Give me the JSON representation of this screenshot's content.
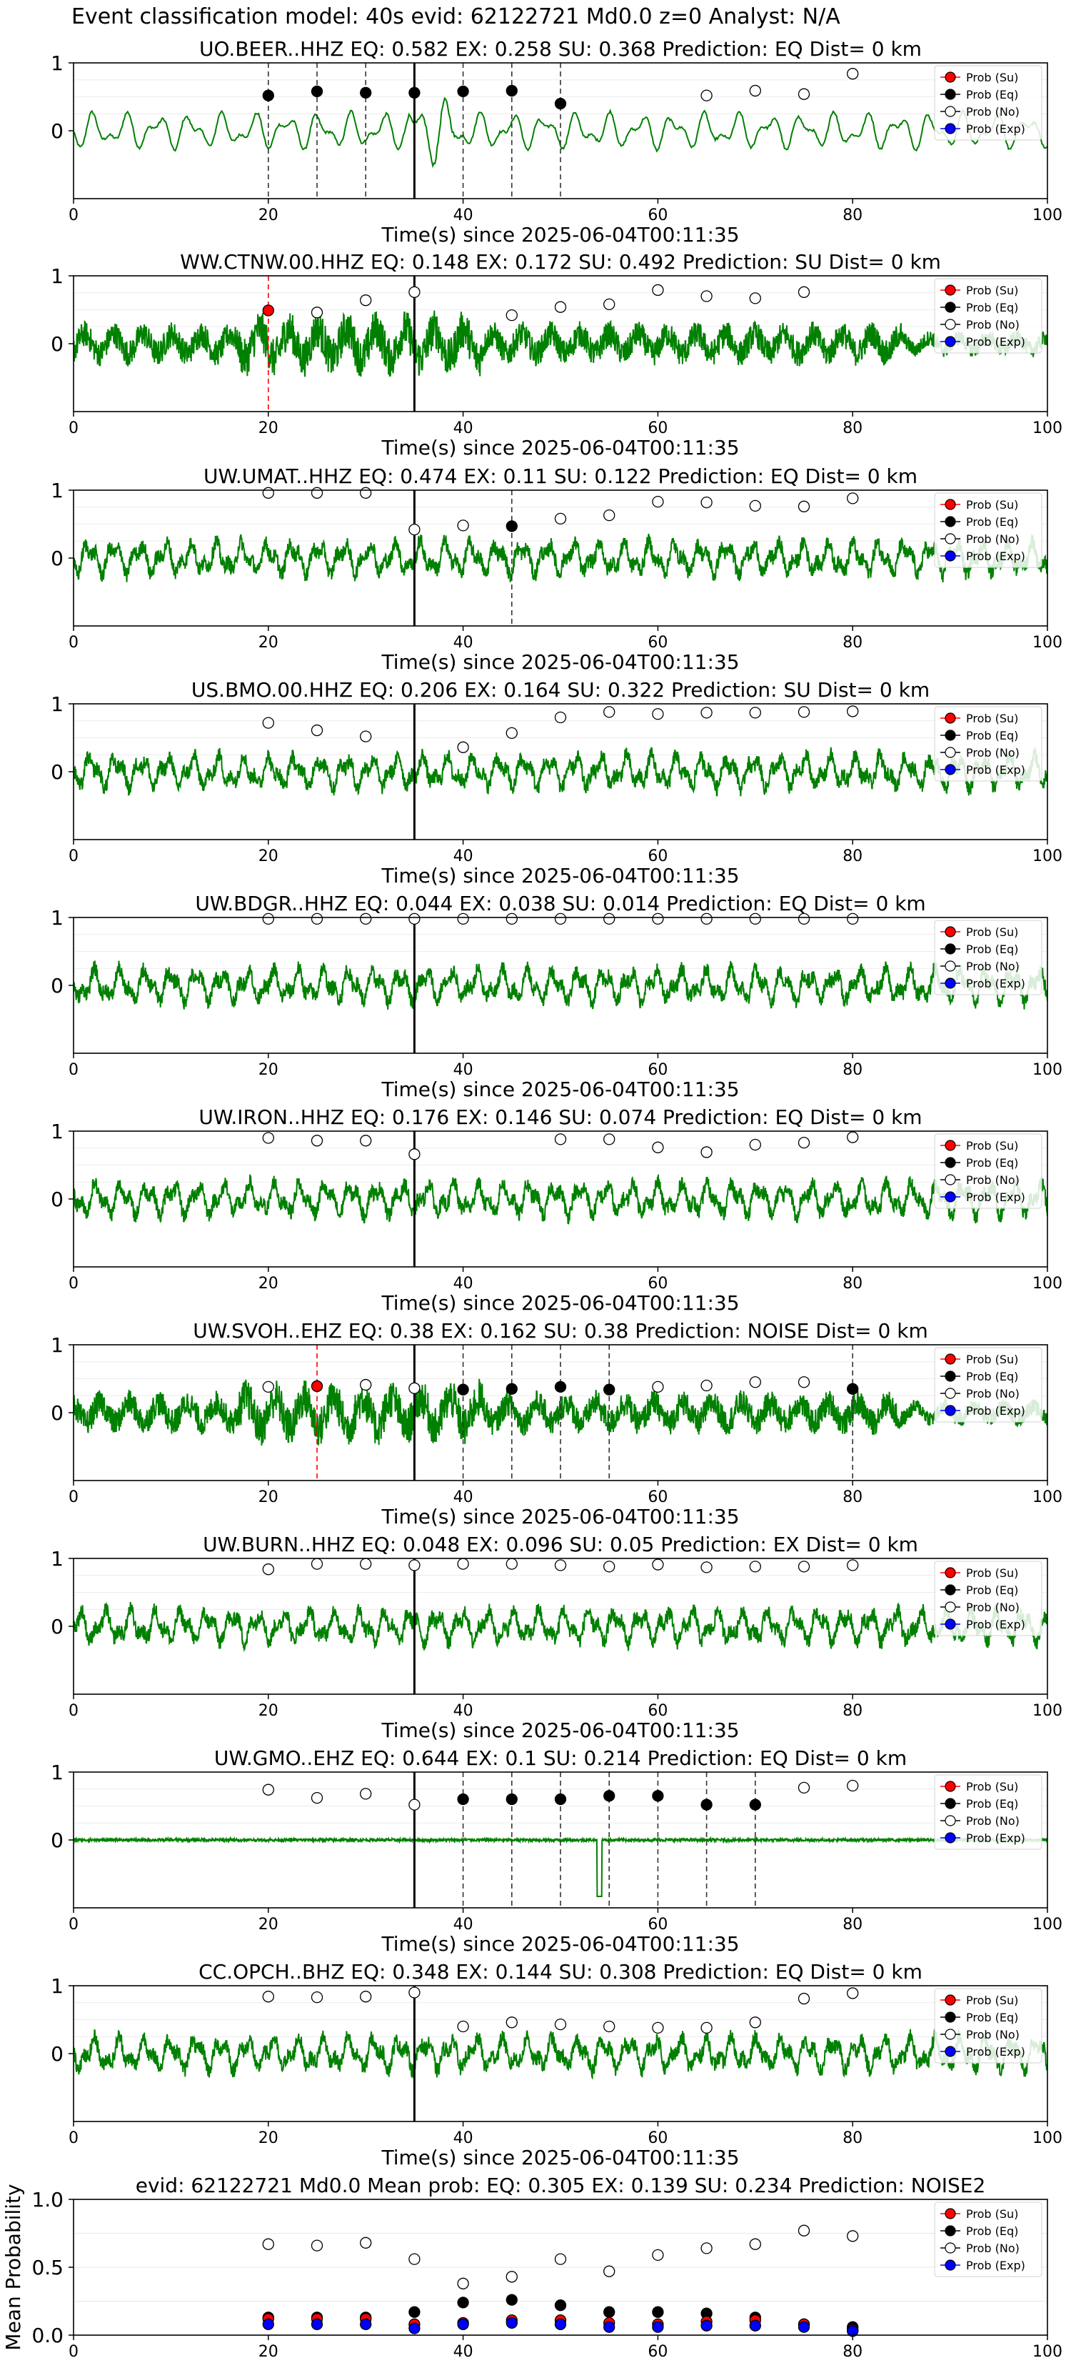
{
  "figure_title": "Event classification model: 40s evid: 62122721 Md0.0 z=0 Analyst: N/A",
  "legend_labels": [
    "Prob (Su)",
    "Prob (Eq)",
    "Prob (No)",
    "Prob (Exp)"
  ],
  "colors": {
    "trace": "#008000",
    "su": "#ff0000",
    "eq": "#000000",
    "no": "#ffffff",
    "exp": "#0000ff"
  },
  "chart_data": [
    {
      "type": "line",
      "title": "UO.BEER..HHZ   EQ: 0.582  EX: 0.258  SU: 0.368   Prediction: EQ    Dist= 0 km",
      "xlabel": "Time(s) since 2025-06-04T00:11:35",
      "xlim": [
        0,
        100
      ],
      "ylim": [
        -1,
        1
      ],
      "y_ticks": [
        "1",
        "0"
      ],
      "x_ticks": [
        "0",
        "20",
        "40",
        "60",
        "80",
        "100"
      ],
      "trace_style": "smooth",
      "origin_time": 35,
      "markers": [
        {
          "x": 20,
          "y": 0.52,
          "c": "eq"
        },
        {
          "x": 25,
          "y": 0.58,
          "c": "eq"
        },
        {
          "x": 30,
          "y": 0.56,
          "c": "eq"
        },
        {
          "x": 35,
          "y": 0.56,
          "c": "eq"
        },
        {
          "x": 40,
          "y": 0.58,
          "c": "eq"
        },
        {
          "x": 45,
          "y": 0.59,
          "c": "eq"
        },
        {
          "x": 50,
          "y": 0.4,
          "c": "eq"
        },
        {
          "x": 65,
          "y": 0.52,
          "c": "no"
        },
        {
          "x": 70,
          "y": 0.59,
          "c": "no"
        },
        {
          "x": 75,
          "y": 0.54,
          "c": "no"
        },
        {
          "x": 80,
          "y": 0.84,
          "c": "no"
        }
      ],
      "picks": [
        {
          "x": 20,
          "c": "eq"
        },
        {
          "x": 25,
          "c": "eq"
        },
        {
          "x": 30,
          "c": "eq"
        },
        {
          "x": 40,
          "c": "eq"
        },
        {
          "x": 45,
          "c": "eq"
        },
        {
          "x": 50,
          "c": "eq"
        }
      ]
    },
    {
      "type": "line",
      "title": "WW.CTNW.00.HHZ   EQ: 0.148  EX: 0.172  SU: 0.492   Prediction: SU    Dist= 0 km",
      "xlabel": "Time(s) since 2025-06-04T00:11:35",
      "xlim": [
        0,
        100
      ],
      "ylim": [
        -1,
        1
      ],
      "y_ticks": [
        "1",
        "0"
      ],
      "x_ticks": [
        "0",
        "20",
        "40",
        "60",
        "80",
        "100"
      ],
      "trace_style": "noisy",
      "origin_time": 35,
      "markers": [
        {
          "x": 20,
          "y": 0.49,
          "c": "su"
        },
        {
          "x": 25,
          "y": 0.46,
          "c": "no"
        },
        {
          "x": 30,
          "y": 0.64,
          "c": "no"
        },
        {
          "x": 35,
          "y": 0.76,
          "c": "no"
        },
        {
          "x": 45,
          "y": 0.42,
          "c": "no"
        },
        {
          "x": 50,
          "y": 0.54,
          "c": "no"
        },
        {
          "x": 55,
          "y": 0.58,
          "c": "no"
        },
        {
          "x": 60,
          "y": 0.79,
          "c": "no"
        },
        {
          "x": 65,
          "y": 0.7,
          "c": "no"
        },
        {
          "x": 70,
          "y": 0.67,
          "c": "no"
        },
        {
          "x": 75,
          "y": 0.76,
          "c": "no"
        }
      ],
      "picks": [
        {
          "x": 20,
          "c": "su"
        }
      ]
    },
    {
      "type": "line",
      "title": "UW.UMAT..HHZ   EQ: 0.474  EX: 0.11  SU: 0.122   Prediction: EQ    Dist= 0 km",
      "xlabel": "Time(s) since 2025-06-04T00:11:35",
      "xlim": [
        0,
        100
      ],
      "ylim": [
        -1,
        1
      ],
      "y_ticks": [
        "1",
        "0"
      ],
      "x_ticks": [
        "0",
        "20",
        "40",
        "60",
        "80",
        "100"
      ],
      "trace_style": "medium",
      "origin_time": 35,
      "markers": [
        {
          "x": 20,
          "y": 0.96,
          "c": "no"
        },
        {
          "x": 25,
          "y": 0.96,
          "c": "no"
        },
        {
          "x": 30,
          "y": 0.96,
          "c": "no"
        },
        {
          "x": 35,
          "y": 0.42,
          "c": "no"
        },
        {
          "x": 40,
          "y": 0.48,
          "c": "no"
        },
        {
          "x": 45,
          "y": 0.47,
          "c": "eq"
        },
        {
          "x": 50,
          "y": 0.58,
          "c": "no"
        },
        {
          "x": 55,
          "y": 0.63,
          "c": "no"
        },
        {
          "x": 60,
          "y": 0.83,
          "c": "no"
        },
        {
          "x": 65,
          "y": 0.82,
          "c": "no"
        },
        {
          "x": 70,
          "y": 0.77,
          "c": "no"
        },
        {
          "x": 75,
          "y": 0.76,
          "c": "no"
        },
        {
          "x": 80,
          "y": 0.88,
          "c": "no"
        }
      ],
      "picks": [
        {
          "x": 45,
          "c": "eq"
        }
      ]
    },
    {
      "type": "line",
      "title": "US.BMO.00.HHZ   EQ: 0.206  EX: 0.164  SU: 0.322   Prediction: SU    Dist= 0 km",
      "xlabel": "Time(s) since 2025-06-04T00:11:35",
      "xlim": [
        0,
        100
      ],
      "ylim": [
        -1,
        1
      ],
      "y_ticks": [
        "1",
        "0"
      ],
      "x_ticks": [
        "0",
        "20",
        "40",
        "60",
        "80",
        "100"
      ],
      "trace_style": "medium",
      "origin_time": 35,
      "markers": [
        {
          "x": 20,
          "y": 0.72,
          "c": "no"
        },
        {
          "x": 25,
          "y": 0.61,
          "c": "no"
        },
        {
          "x": 30,
          "y": 0.52,
          "c": "no"
        },
        {
          "x": 40,
          "y": 0.36,
          "c": "no"
        },
        {
          "x": 45,
          "y": 0.57,
          "c": "no"
        },
        {
          "x": 50,
          "y": 0.8,
          "c": "no"
        },
        {
          "x": 55,
          "y": 0.88,
          "c": "no"
        },
        {
          "x": 60,
          "y": 0.85,
          "c": "no"
        },
        {
          "x": 65,
          "y": 0.87,
          "c": "no"
        },
        {
          "x": 70,
          "y": 0.87,
          "c": "no"
        },
        {
          "x": 75,
          "y": 0.88,
          "c": "no"
        },
        {
          "x": 80,
          "y": 0.89,
          "c": "no"
        }
      ],
      "picks": []
    },
    {
      "type": "line",
      "title": "UW.BDGR..HHZ   EQ: 0.044  EX: 0.038  SU: 0.014   Prediction: EQ    Dist= 0 km",
      "xlabel": "Time(s) since 2025-06-04T00:11:35",
      "xlim": [
        0,
        100
      ],
      "ylim": [
        -1,
        1
      ],
      "y_ticks": [
        "1",
        "0"
      ],
      "x_ticks": [
        "0",
        "20",
        "40",
        "60",
        "80",
        "100"
      ],
      "trace_style": "medium",
      "origin_time": 35,
      "markers": [
        {
          "x": 20,
          "y": 0.98,
          "c": "no"
        },
        {
          "x": 25,
          "y": 0.98,
          "c": "no"
        },
        {
          "x": 30,
          "y": 0.98,
          "c": "no"
        },
        {
          "x": 35,
          "y": 0.98,
          "c": "no"
        },
        {
          "x": 40,
          "y": 0.98,
          "c": "no"
        },
        {
          "x": 45,
          "y": 0.98,
          "c": "no"
        },
        {
          "x": 50,
          "y": 0.98,
          "c": "no"
        },
        {
          "x": 55,
          "y": 0.98,
          "c": "no"
        },
        {
          "x": 60,
          "y": 0.98,
          "c": "no"
        },
        {
          "x": 65,
          "y": 0.98,
          "c": "no"
        },
        {
          "x": 70,
          "y": 0.98,
          "c": "no"
        },
        {
          "x": 75,
          "y": 0.98,
          "c": "no"
        },
        {
          "x": 80,
          "y": 0.98,
          "c": "no"
        }
      ],
      "picks": []
    },
    {
      "type": "line",
      "title": "UW.IRON..HHZ   EQ: 0.176  EX: 0.146  SU: 0.074   Prediction: EQ    Dist= 0 km",
      "xlabel": "Time(s) since 2025-06-04T00:11:35",
      "xlim": [
        0,
        100
      ],
      "ylim": [
        -1,
        1
      ],
      "y_ticks": [
        "1",
        "0"
      ],
      "x_ticks": [
        "0",
        "20",
        "40",
        "60",
        "80",
        "100"
      ],
      "trace_style": "medium",
      "origin_time": 35,
      "markers": [
        {
          "x": 20,
          "y": 0.9,
          "c": "no"
        },
        {
          "x": 25,
          "y": 0.86,
          "c": "no"
        },
        {
          "x": 30,
          "y": 0.86,
          "c": "no"
        },
        {
          "x": 35,
          "y": 0.66,
          "c": "no"
        },
        {
          "x": 50,
          "y": 0.88,
          "c": "no"
        },
        {
          "x": 55,
          "y": 0.88,
          "c": "no"
        },
        {
          "x": 60,
          "y": 0.76,
          "c": "no"
        },
        {
          "x": 65,
          "y": 0.69,
          "c": "no"
        },
        {
          "x": 70,
          "y": 0.8,
          "c": "no"
        },
        {
          "x": 75,
          "y": 0.83,
          "c": "no"
        },
        {
          "x": 80,
          "y": 0.91,
          "c": "no"
        }
      ],
      "picks": []
    },
    {
      "type": "line",
      "title": "UW.SVOH..EHZ   EQ: 0.38  EX: 0.162  SU: 0.38   Prediction: NOISE    Dist= 0 km",
      "xlabel": "Time(s) since 2025-06-04T00:11:35",
      "xlim": [
        0,
        100
      ],
      "ylim": [
        -1,
        1
      ],
      "y_ticks": [
        "1",
        "0"
      ],
      "x_ticks": [
        "0",
        "20",
        "40",
        "60",
        "80",
        "100"
      ],
      "trace_style": "noisy",
      "origin_time": 35,
      "markers": [
        {
          "x": 20,
          "y": 0.38,
          "c": "no"
        },
        {
          "x": 25,
          "y": 0.39,
          "c": "su"
        },
        {
          "x": 30,
          "y": 0.41,
          "c": "no"
        },
        {
          "x": 35,
          "y": 0.36,
          "c": "no"
        },
        {
          "x": 40,
          "y": 0.34,
          "c": "eq"
        },
        {
          "x": 45,
          "y": 0.35,
          "c": "eq"
        },
        {
          "x": 50,
          "y": 0.38,
          "c": "eq"
        },
        {
          "x": 55,
          "y": 0.34,
          "c": "eq"
        },
        {
          "x": 60,
          "y": 0.38,
          "c": "no"
        },
        {
          "x": 65,
          "y": 0.4,
          "c": "no"
        },
        {
          "x": 70,
          "y": 0.45,
          "c": "no"
        },
        {
          "x": 75,
          "y": 0.45,
          "c": "no"
        },
        {
          "x": 80,
          "y": 0.35,
          "c": "eq"
        }
      ],
      "picks": [
        {
          "x": 25,
          "c": "su"
        },
        {
          "x": 40,
          "c": "eq"
        },
        {
          "x": 45,
          "c": "eq"
        },
        {
          "x": 50,
          "c": "eq"
        },
        {
          "x": 55,
          "c": "eq"
        },
        {
          "x": 80,
          "c": "eq"
        }
      ]
    },
    {
      "type": "line",
      "title": "UW.BURN..HHZ   EQ: 0.048  EX: 0.096  SU: 0.05   Prediction: EX    Dist= 0 km",
      "xlabel": "Time(s) since 2025-06-04T00:11:35",
      "xlim": [
        0,
        100
      ],
      "ylim": [
        -1,
        1
      ],
      "y_ticks": [
        "1",
        "0"
      ],
      "x_ticks": [
        "0",
        "20",
        "40",
        "60",
        "80",
        "100"
      ],
      "trace_style": "medium",
      "origin_time": 35,
      "markers": [
        {
          "x": 20,
          "y": 0.84,
          "c": "no"
        },
        {
          "x": 25,
          "y": 0.92,
          "c": "no"
        },
        {
          "x": 30,
          "y": 0.92,
          "c": "no"
        },
        {
          "x": 35,
          "y": 0.9,
          "c": "no"
        },
        {
          "x": 40,
          "y": 0.92,
          "c": "no"
        },
        {
          "x": 45,
          "y": 0.92,
          "c": "no"
        },
        {
          "x": 50,
          "y": 0.9,
          "c": "no"
        },
        {
          "x": 55,
          "y": 0.88,
          "c": "no"
        },
        {
          "x": 60,
          "y": 0.91,
          "c": "no"
        },
        {
          "x": 65,
          "y": 0.87,
          "c": "no"
        },
        {
          "x": 70,
          "y": 0.88,
          "c": "no"
        },
        {
          "x": 75,
          "y": 0.88,
          "c": "no"
        },
        {
          "x": 80,
          "y": 0.9,
          "c": "no"
        }
      ],
      "picks": []
    },
    {
      "type": "line",
      "title": "UW.GMO..EHZ   EQ: 0.644  EX: 0.1  SU: 0.214   Prediction: EQ    Dist= 0 km",
      "xlabel": "Time(s) since 2025-06-04T00:11:35",
      "xlim": [
        0,
        100
      ],
      "ylim": [
        -1,
        1
      ],
      "y_ticks": [
        "1",
        "0"
      ],
      "x_ticks": [
        "0",
        "20",
        "40",
        "60",
        "80",
        "100"
      ],
      "trace_style": "flat",
      "origin_time": 35,
      "markers": [
        {
          "x": 20,
          "y": 0.74,
          "c": "no"
        },
        {
          "x": 25,
          "y": 0.62,
          "c": "no"
        },
        {
          "x": 30,
          "y": 0.68,
          "c": "no"
        },
        {
          "x": 35,
          "y": 0.52,
          "c": "no"
        },
        {
          "x": 40,
          "y": 0.6,
          "c": "eq"
        },
        {
          "x": 45,
          "y": 0.6,
          "c": "eq"
        },
        {
          "x": 50,
          "y": 0.6,
          "c": "eq"
        },
        {
          "x": 55,
          "y": 0.65,
          "c": "eq"
        },
        {
          "x": 60,
          "y": 0.65,
          "c": "eq"
        },
        {
          "x": 65,
          "y": 0.52,
          "c": "eq"
        },
        {
          "x": 70,
          "y": 0.52,
          "c": "eq"
        },
        {
          "x": 75,
          "y": 0.77,
          "c": "no"
        },
        {
          "x": 80,
          "y": 0.8,
          "c": "no"
        }
      ],
      "picks": [
        {
          "x": 40,
          "c": "eq"
        },
        {
          "x": 45,
          "c": "eq"
        },
        {
          "x": 50,
          "c": "eq"
        },
        {
          "x": 55,
          "c": "eq"
        },
        {
          "x": 60,
          "c": "eq"
        },
        {
          "x": 65,
          "c": "eq"
        },
        {
          "x": 70,
          "c": "eq"
        }
      ]
    },
    {
      "type": "line",
      "title": "CC.OPCH..BHZ   EQ: 0.348  EX: 0.144  SU: 0.308   Prediction: EQ    Dist= 0 km",
      "xlabel": "Time(s) since 2025-06-04T00:11:35",
      "xlim": [
        0,
        100
      ],
      "ylim": [
        -1,
        1
      ],
      "y_ticks": [
        "1",
        "0"
      ],
      "x_ticks": [
        "0",
        "20",
        "40",
        "60",
        "80",
        "100"
      ],
      "trace_style": "medium",
      "origin_time": 35,
      "markers": [
        {
          "x": 20,
          "y": 0.84,
          "c": "no"
        },
        {
          "x": 25,
          "y": 0.83,
          "c": "no"
        },
        {
          "x": 30,
          "y": 0.84,
          "c": "no"
        },
        {
          "x": 35,
          "y": 0.9,
          "c": "no"
        },
        {
          "x": 40,
          "y": 0.4,
          "c": "no"
        },
        {
          "x": 45,
          "y": 0.46,
          "c": "no"
        },
        {
          "x": 50,
          "y": 0.43,
          "c": "no"
        },
        {
          "x": 55,
          "y": 0.4,
          "c": "no"
        },
        {
          "x": 60,
          "y": 0.38,
          "c": "no"
        },
        {
          "x": 65,
          "y": 0.38,
          "c": "no"
        },
        {
          "x": 70,
          "y": 0.46,
          "c": "no"
        },
        {
          "x": 75,
          "y": 0.81,
          "c": "no"
        },
        {
          "x": 80,
          "y": 0.89,
          "c": "no"
        }
      ],
      "picks": []
    },
    {
      "type": "scatter",
      "title": "evid: 62122721   Md0.0   Mean prob:   EQ: 0.305   EX: 0.139   SU: 0.234   Prediction: NOISE2",
      "xlabel": "",
      "ylabel": "Mean Probability",
      "xlim": [
        0,
        100
      ],
      "ylim": [
        0,
        1
      ],
      "y_ticks": [
        "0.0",
        "0.5",
        "1.0"
      ],
      "x_ticks": [
        "0",
        "20",
        "40",
        "60",
        "80",
        "100"
      ],
      "y_minor": [
        0.25,
        0.75
      ],
      "series": [
        {
          "name": "Prob (No)",
          "c": "no",
          "x": [
            20,
            25,
            30,
            35,
            40,
            45,
            50,
            55,
            60,
            65,
            70,
            75,
            80
          ],
          "values": [
            0.67,
            0.66,
            0.68,
            0.56,
            0.38,
            0.43,
            0.56,
            0.47,
            0.59,
            0.64,
            0.67,
            0.77,
            0.73
          ]
        },
        {
          "name": "Prob (Eq)",
          "c": "eq",
          "x": [
            20,
            25,
            30,
            35,
            40,
            45,
            50,
            55,
            60,
            65,
            70,
            75,
            80
          ],
          "values": [
            0.13,
            0.13,
            0.13,
            0.17,
            0.24,
            0.26,
            0.22,
            0.17,
            0.17,
            0.16,
            0.13,
            0.08,
            0.06
          ]
        },
        {
          "name": "Prob (Su)",
          "c": "su",
          "x": [
            20,
            25,
            30,
            35,
            40,
            45,
            50,
            55,
            60,
            65,
            70,
            75,
            80
          ],
          "values": [
            0.12,
            0.12,
            0.12,
            0.08,
            0.09,
            0.11,
            0.11,
            0.09,
            0.08,
            0.1,
            0.11,
            0.08,
            0.04
          ]
        },
        {
          "name": "Prob (Exp)",
          "c": "exp",
          "x": [
            20,
            25,
            30,
            35,
            40,
            45,
            50,
            55,
            60,
            65,
            70,
            75,
            80
          ],
          "values": [
            0.08,
            0.08,
            0.08,
            0.05,
            0.08,
            0.09,
            0.08,
            0.06,
            0.06,
            0.07,
            0.07,
            0.06,
            0.03
          ]
        }
      ]
    }
  ]
}
